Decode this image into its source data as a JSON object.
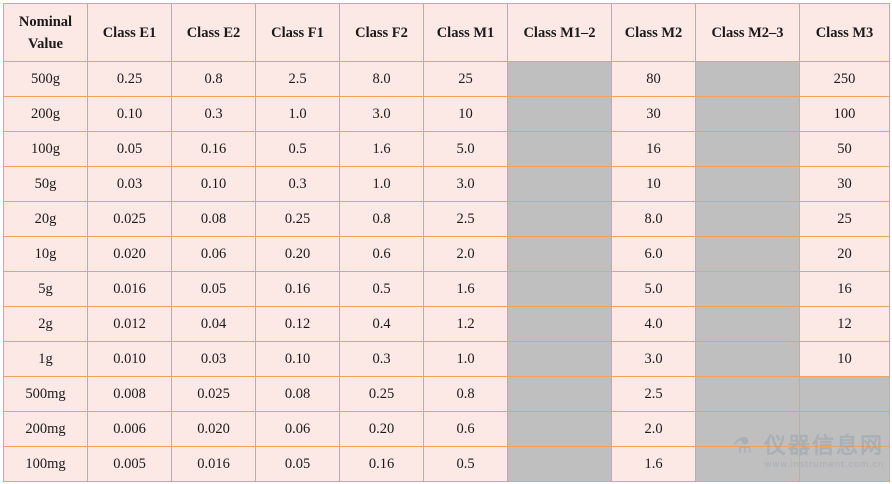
{
  "headers": [
    "Nominal\nValue",
    "Class E1",
    "Class E2",
    "Class F1",
    "Class F2",
    "Class M1",
    "Class M1–2",
    "Class M2",
    "Class M2–3",
    "Class M3"
  ],
  "rows": [
    {
      "nominal": "500g",
      "e1": "0.25",
      "e2": "0.8",
      "f1": "2.5",
      "f2": "8.0",
      "m1": "25",
      "m12": "",
      "m2": "80",
      "m23": "",
      "m3": "250"
    },
    {
      "nominal": "200g",
      "e1": "0.10",
      "e2": "0.3",
      "f1": "1.0",
      "f2": "3.0",
      "m1": "10",
      "m12": "",
      "m2": "30",
      "m23": "",
      "m3": "100"
    },
    {
      "nominal": "100g",
      "e1": "0.05",
      "e2": "0.16",
      "f1": "0.5",
      "f2": "1.6",
      "m1": "5.0",
      "m12": "",
      "m2": "16",
      "m23": "",
      "m3": "50"
    },
    {
      "nominal": "50g",
      "e1": "0.03",
      "e2": "0.10",
      "f1": "0.3",
      "f2": "1.0",
      "m1": "3.0",
      "m12": "",
      "m2": "10",
      "m23": "",
      "m3": "30"
    },
    {
      "nominal": "20g",
      "e1": "0.025",
      "e2": "0.08",
      "f1": "0.25",
      "f2": "0.8",
      "m1": "2.5",
      "m12": "",
      "m2": "8.0",
      "m23": "",
      "m3": "25"
    },
    {
      "nominal": "10g",
      "e1": "0.020",
      "e2": "0.06",
      "f1": "0.20",
      "f2": "0.6",
      "m1": "2.0",
      "m12": "",
      "m2": "6.0",
      "m23": "",
      "m3": "20"
    },
    {
      "nominal": "5g",
      "e1": "0.016",
      "e2": "0.05",
      "f1": "0.16",
      "f2": "0.5",
      "m1": "1.6",
      "m12": "",
      "m2": "5.0",
      "m23": "",
      "m3": "16"
    },
    {
      "nominal": "2g",
      "e1": "0.012",
      "e2": "0.04",
      "f1": "0.12",
      "f2": "0.4",
      "m1": "1.2",
      "m12": "",
      "m2": "4.0",
      "m23": "",
      "m3": "12"
    },
    {
      "nominal": "1g",
      "e1": "0.010",
      "e2": "0.03",
      "f1": "0.10",
      "f2": "0.3",
      "m1": "1.0",
      "m12": "",
      "m2": "3.0",
      "m23": "",
      "m3": "10"
    },
    {
      "nominal": "500mg",
      "e1": "0.008",
      "e2": "0.025",
      "f1": "0.08",
      "f2": "0.25",
      "m1": "0.8",
      "m12": "",
      "m2": "2.5",
      "m23": "",
      "m3": ""
    },
    {
      "nominal": "200mg",
      "e1": "0.006",
      "e2": "0.020",
      "f1": "0.06",
      "f2": "0.20",
      "m1": "0.6",
      "m12": "",
      "m2": "2.0",
      "m23": "",
      "m3": ""
    },
    {
      "nominal": "100mg",
      "e1": "0.005",
      "e2": "0.016",
      "f1": "0.05",
      "f2": "0.16",
      "m1": "0.5",
      "m12": "",
      "m2": "1.6",
      "m23": "",
      "m3": ""
    }
  ],
  "colors": {
    "cell_bg": "#fce8e4",
    "border": "#f0a25a",
    "na_bg": "#bfbfbf"
  },
  "watermark": {
    "brand": "仪器信息网",
    "url": "www.instrument.com.cn",
    "icon": "flask-icon"
  }
}
